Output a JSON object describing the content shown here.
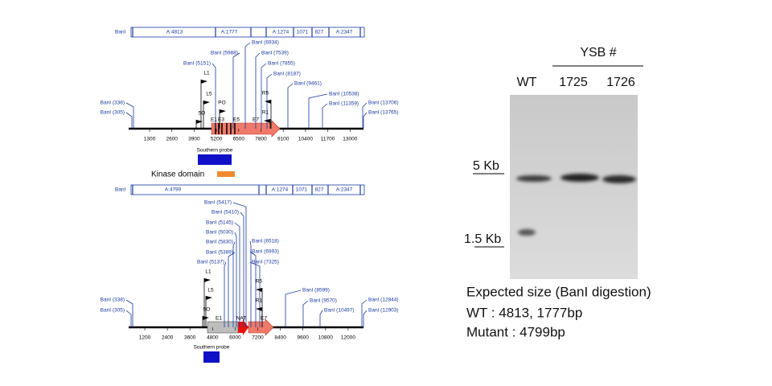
{
  "top_map": {
    "enzyme": "BanI",
    "fragments": [
      "A:4813",
      "A:1777",
      "A:1274",
      "1071",
      "827",
      "A:2347"
    ],
    "sites": [
      "BanI (5151)",
      "BanI (5988)",
      "BanI (6934)",
      "BanI (7539)",
      "BanI (7855)",
      "BanI (8187)",
      "BanI (9461)",
      "BanI (10538)",
      "BanI (11359)",
      "BanI (338)",
      "BanI (305)",
      "BanI (13706)",
      "BanI (13765)"
    ],
    "primers": [
      "L1",
      "L5",
      "5O",
      "PO",
      "R5",
      "R1"
    ],
    "exons": [
      "E1",
      "E3",
      "E5",
      "E7"
    ],
    "axis_ticks": [
      "1300",
      "2600",
      "3900",
      "5200",
      "6500",
      "7800",
      "9100",
      "10400",
      "11700",
      "13000"
    ],
    "probe_label": "Southern probe",
    "domain_label": "Kinase domain"
  },
  "bottom_map": {
    "enzyme": "BanI",
    "fragments": [
      "A:4799",
      "A:1274",
      "1071",
      "827",
      "A:2347"
    ],
    "sites": [
      "BanI (5417)",
      "BanI (5410)",
      "BanI (5145)",
      "BanI (5030)",
      "BanI (5830)",
      "BanI (5389)",
      "BanI (5137)",
      "BanI (6518)",
      "BanI (6993)",
      "BanI (7325)",
      "BanI (8599)",
      "BanI (9570)",
      "BanI (10497)",
      "BanI (338)",
      "BanI (305)",
      "BanI (12844)",
      "BanI (12903)"
    ],
    "primers": [
      "L1",
      "L5",
      "5O",
      "R5",
      "R1"
    ],
    "exons": [
      "E1",
      "NAT",
      "E7"
    ],
    "axis_ticks": [
      "1200",
      "2400",
      "3600",
      "4800",
      "6000",
      "7200",
      "8400",
      "9600",
      "10800",
      "12000"
    ],
    "probe_label": "Southern probe"
  },
  "blot": {
    "group_label": "YSB #",
    "lanes": [
      "WT",
      "1725",
      "1726"
    ],
    "markers": [
      "5 Kb",
      "1.5 Kb"
    ],
    "caption": [
      "Expected size (BanI digestion)",
      "WT : 4813, 1777bp",
      "Mutant : 4799bp"
    ]
  }
}
